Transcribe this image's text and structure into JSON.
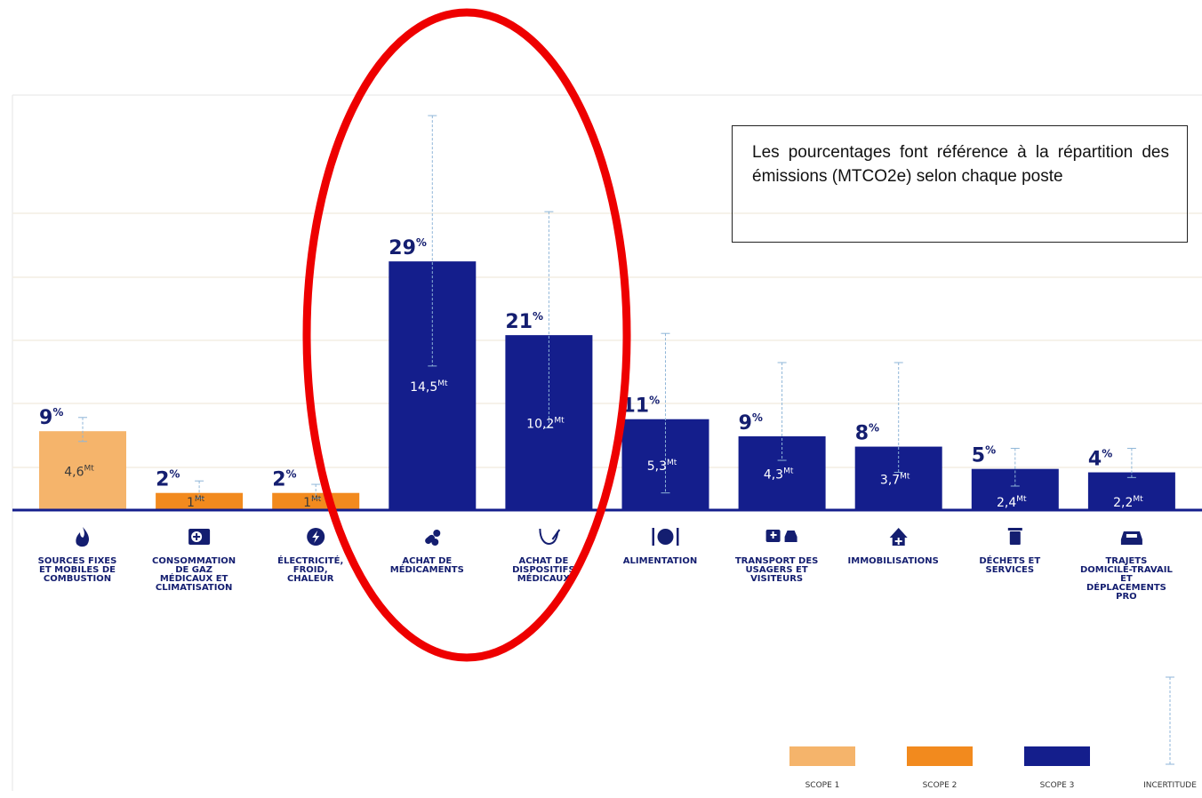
{
  "note": "Les pourcentages font référence à la répartition des émissions (MTCO2e) selon chaque poste",
  "colors": {
    "scope1": "#f5b46b",
    "scope2": "#f28a1e",
    "scope3": "#141e8c",
    "uncertainty": "#8fb6d8",
    "text_dark": "#141e70",
    "highlight": "#ee0000"
  },
  "chart_data": {
    "type": "bar",
    "grid": true,
    "categories": [
      {
        "id": "combustion",
        "label": "SOURCES FIXES ET MOBILES DE COMBUSTION",
        "icon": "flame-icon",
        "scope": "scope1"
      },
      {
        "id": "gaz-medicaux",
        "label": "CONSOMMATION DE GAZ MÉDICAUX ET CLIMATISATION",
        "icon": "medical-cabinet-icon",
        "scope": "scope2"
      },
      {
        "id": "electricite",
        "label": "ÉLECTRICITÉ, FROID, CHALEUR",
        "icon": "lightning-icon",
        "scope": "scope2"
      },
      {
        "id": "medicaments",
        "label": "ACHAT DE MÉDICAMENTS",
        "icon": "pills-icon",
        "scope": "scope3"
      },
      {
        "id": "dispositifs",
        "label": "ACHAT DE DISPOSITIFS MÉDICAUX",
        "icon": "stethoscope-icon",
        "scope": "scope3"
      },
      {
        "id": "alimentation",
        "label": "ALIMENTATION",
        "icon": "plate-icon",
        "scope": "scope3"
      },
      {
        "id": "transport",
        "label": "TRANSPORT DES USAGERS ET VISITEURS",
        "icon": "ambulance-icon",
        "scope": "scope3"
      },
      {
        "id": "immobilisations",
        "label": "IMMOBILISATIONS",
        "icon": "house-icon",
        "scope": "scope3"
      },
      {
        "id": "dechets",
        "label": "DÉCHETS ET SERVICES",
        "icon": "trash-icon",
        "scope": "scope3"
      },
      {
        "id": "trajets",
        "label": "TRAJETS DOMICILE-TRAVAIL ET DÉPLACEMENTS PRO",
        "icon": "car-icon",
        "scope": "scope3"
      }
    ],
    "values_mt": [
      4.6,
      1,
      1,
      14.5,
      10.2,
      5.3,
      4.3,
      3.7,
      2.4,
      2.2
    ],
    "value_labels": [
      "4,6",
      "1",
      "1",
      "14,5",
      "10,2",
      "5,3",
      "4,3",
      "3,7",
      "2,4",
      "2,2"
    ],
    "value_unit": "Mt",
    "percents": [
      "9",
      "2",
      "2",
      "29",
      "21",
      "11",
      "9",
      "8",
      "5",
      "4"
    ],
    "uncertainty_mt": [
      [
        4.0,
        5.4
      ],
      [
        0.7,
        1.7
      ],
      [
        0.7,
        1.5
      ],
      [
        8.4,
        23.0
      ],
      [
        4.8,
        17.4
      ],
      [
        1.0,
        10.3
      ],
      [
        2.9,
        8.6
      ],
      [
        2.2,
        8.6
      ],
      [
        1.4,
        3.6
      ],
      [
        1.9,
        3.6
      ]
    ],
    "ylim": [
      0,
      26
    ],
    "highlighted": [
      "medicaments",
      "dispositifs"
    ],
    "legend": [
      {
        "label": "SCOPE 1",
        "key": "scope1"
      },
      {
        "label": "SCOPE 2",
        "key": "scope2"
      },
      {
        "label": "SCOPE 3",
        "key": "scope3"
      },
      {
        "label": "INCERTITUDE",
        "key": "uncertainty"
      }
    ]
  }
}
